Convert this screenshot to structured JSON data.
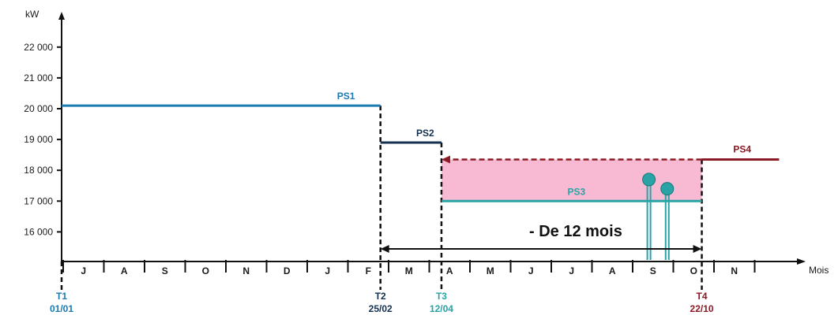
{
  "chart_data": {
    "type": "line",
    "ylabel": "kW",
    "xlabel": "Mois",
    "yticks": [
      {
        "value": 22000,
        "label": "22 000"
      },
      {
        "value": 21000,
        "label": "21 000"
      },
      {
        "value": 20000,
        "label": "20 000"
      },
      {
        "value": 19000,
        "label": "19 000"
      },
      {
        "value": 18000,
        "label": "18 000"
      },
      {
        "value": 17000,
        "label": "17 000"
      },
      {
        "value": 16000,
        "label": "16 000"
      }
    ],
    "ylim": [
      15000,
      23000
    ],
    "months": [
      "J",
      "A",
      "S",
      "O",
      "N",
      "D",
      "J",
      "F",
      "M",
      "A",
      "M",
      "J",
      "J",
      "A",
      "S",
      "O",
      "N"
    ],
    "series": [
      {
        "name": "PS1",
        "start_month": 0,
        "end_month": 7.8,
        "value": 20100,
        "color": "#1a7ab0"
      },
      {
        "name": "PS2",
        "start_month": 7.8,
        "end_month": 9.3,
        "value": 18900,
        "color": "#15304f"
      },
      {
        "name": "PS3",
        "start_month": 9.3,
        "end_month": 15.7,
        "value": 17000,
        "color": "#2aa3a6"
      },
      {
        "name": "PS4",
        "start_month": 9.3,
        "end_month": 17.6,
        "value": 18350,
        "color": "#8b1a24"
      }
    ],
    "markers": [
      {
        "label": "T1",
        "date": "01/01",
        "month": 0,
        "color": "#1a7ab0"
      },
      {
        "label": "T2",
        "date": "25/02",
        "month": 7.8,
        "color": "#15304f"
      },
      {
        "label": "T3",
        "date": "12/04",
        "month": 9.3,
        "color": "#2aa3a6"
      },
      {
        "label": "T4",
        "date": "22/10",
        "month": 15.7,
        "color": "#8b1a24"
      }
    ],
    "peaks": [
      {
        "month": 14.4,
        "value": 17700
      },
      {
        "month": 14.85,
        "value": 17400
      }
    ],
    "duration_text": "- De 12 mois",
    "colors": {
      "ps1": "#1a7ab0",
      "ps2": "#15304f",
      "ps3": "#2aa3a6",
      "ps4": "#8b1a24",
      "shaded_area": "#f8bad2",
      "peak_marker": "#2aa3a6",
      "axis": "#111111"
    }
  }
}
